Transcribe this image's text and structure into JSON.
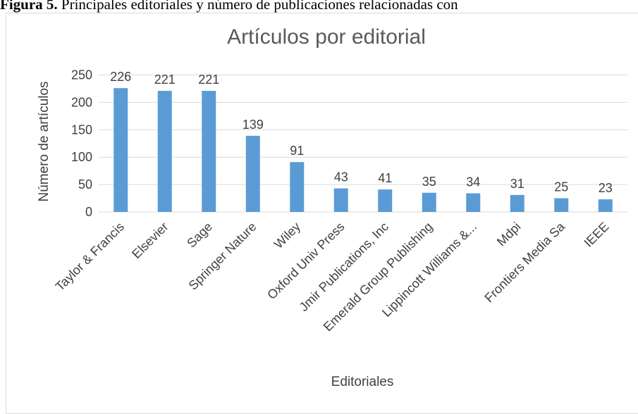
{
  "caption": {
    "label": "Figura 5.",
    "text": " Principales editoriales y número de publicaciones relacionadas con"
  },
  "chart_data": {
    "type": "bar",
    "title": "Artículos por editorial",
    "xlabel": "Editoriales",
    "ylabel": "Número de artículos",
    "ylim": [
      0,
      250
    ],
    "yticks": [
      0,
      50,
      100,
      150,
      200,
      250
    ],
    "grid": true,
    "bar_color": "#5b9bd5",
    "categories": [
      "Taylor & Francis",
      "Elsevier",
      "Sage",
      "Springer Nature",
      "Wiley",
      "Oxford Univ Press",
      "Jmir Publications, Inc",
      "Emerald Group Publishing",
      "Lippincott Williams &...",
      "Mdpi",
      "Frontiers Media Sa",
      "IEEE"
    ],
    "values": [
      226,
      221,
      221,
      139,
      91,
      43,
      41,
      35,
      34,
      31,
      25,
      23
    ]
  }
}
